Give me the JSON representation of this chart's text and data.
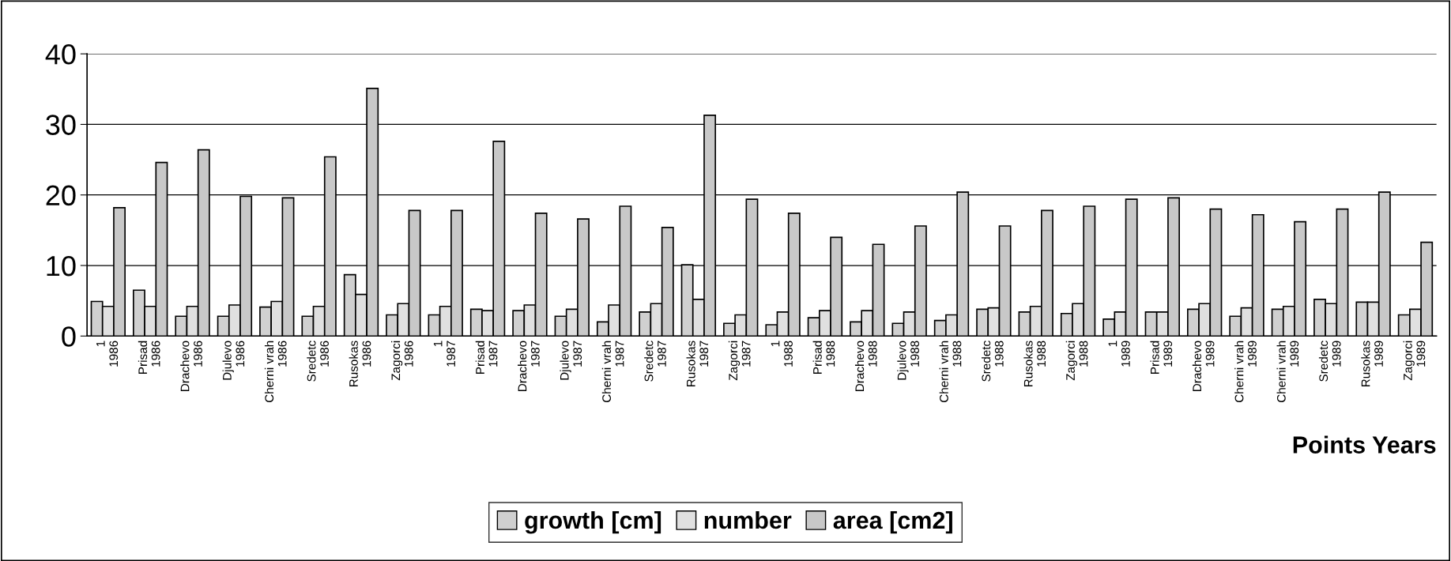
{
  "chart_data": {
    "type": "bar",
    "categories": [
      "1\n1986",
      "Prisad\n1986",
      "Drachevo\n1986",
      "Djulevo\n1986",
      "Cherni vrah\n1986",
      "Sredetc\n1986",
      "Rusokas\n1986",
      "Zagorci\n1986",
      "1\n1987",
      "Prisad\n1987",
      "Drachevo\n1987",
      "Djulevo\n1987",
      "Cherni vrah\n1987",
      "Sredetc\n1987",
      "Rusokas\n1987",
      "Zagorci\n1987",
      "1\n1988",
      "Prisad\n1988",
      "Drachevo\n1988",
      "Djulevo\n1988",
      "Cherni vrah\n1988",
      "Sredetc\n1988",
      "Rusokas\n1988",
      "Zagorci\n1988",
      "1\n1989",
      "Prisad\n1989",
      "Drachevo\n1989",
      "Cherni vrah\n1989",
      "Cherni vrah\n1989",
      "Sredetc\n1989",
      "Rusokas\n1989",
      "Zagorci\n1989"
    ],
    "series": [
      {
        "name": "growth [cm]",
        "color": "#d0d0d0",
        "values": [
          4.9,
          6.5,
          2.8,
          2.8,
          4.1,
          2.8,
          8.7,
          3.0,
          3.0,
          3.8,
          3.6,
          2.8,
          2.0,
          3.4,
          10.1,
          1.8,
          1.6,
          2.6,
          2.0,
          1.8,
          2.2,
          3.8,
          3.4,
          3.2,
          2.4,
          3.4,
          3.8,
          2.8,
          3.8,
          5.2,
          4.8,
          3.0
        ]
      },
      {
        "name": "number",
        "color": "#e0e0e0",
        "values": [
          4.2,
          4.2,
          4.2,
          4.4,
          4.9,
          4.2,
          5.9,
          4.6,
          4.2,
          3.6,
          4.4,
          3.8,
          4.4,
          4.6,
          5.2,
          3.0,
          3.4,
          3.6,
          3.6,
          3.4,
          3.0,
          4.0,
          4.2,
          4.6,
          3.4,
          3.4,
          4.6,
          4.0,
          4.2,
          4.6,
          4.8,
          3.8
        ]
      },
      {
        "name": "area [cm2]",
        "color": "#c8c8c8",
        "values": [
          18.2,
          24.6,
          26.4,
          19.8,
          19.6,
          25.4,
          35.1,
          17.8,
          17.8,
          27.6,
          17.4,
          16.6,
          18.4,
          15.4,
          31.3,
          19.4,
          17.4,
          14.0,
          13.0,
          15.6,
          20.4,
          15.6,
          17.8,
          18.4,
          19.4,
          19.6,
          18.0,
          17.2,
          16.2,
          18.0,
          20.4,
          13.3
        ]
      }
    ],
    "xlabel": "Points Years",
    "ylim": [
      0,
      40
    ],
    "yticks": [
      0,
      10,
      20,
      30,
      40
    ],
    "grid": "y",
    "legend": "bottom"
  }
}
